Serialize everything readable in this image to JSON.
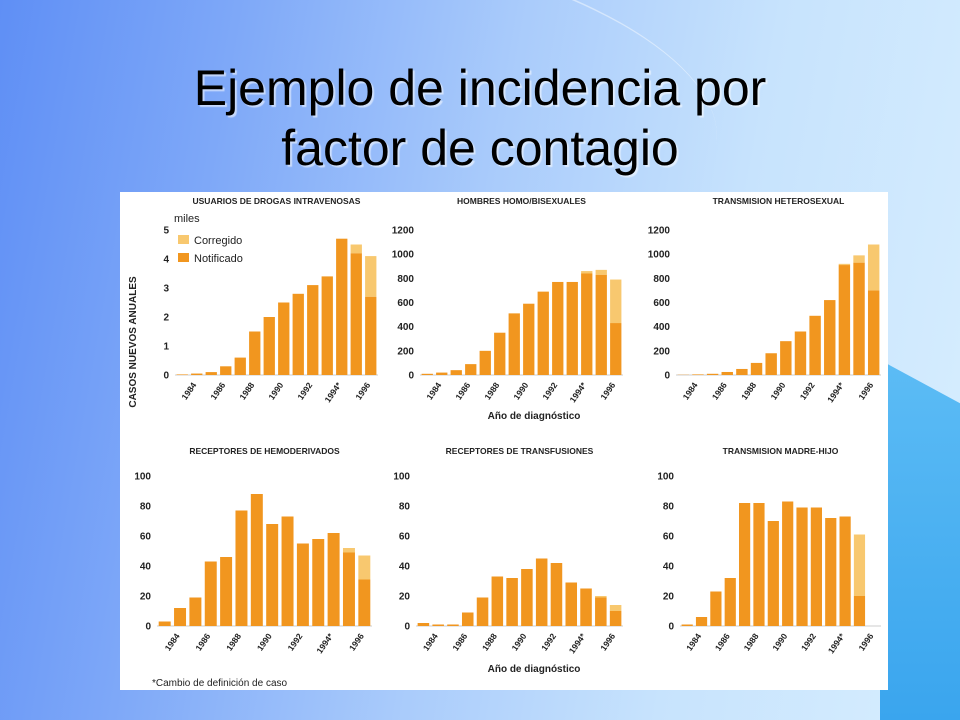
{
  "slide": {
    "title_line1": "Ejemplo de incidencia por",
    "title_line2": "factor de contagio"
  },
  "figure": {
    "y_axis_label": "CASOS NUEVOS ANUALES",
    "x_axis_label": "Año de diagnóstico",
    "footnote": "*Cambio de definición de caso",
    "legend": {
      "corrected": "Corregido",
      "reported": "Notificado"
    },
    "units": "miles",
    "colors": {
      "reported": "#f1961f",
      "corrected": "#f8c86f"
    }
  },
  "chart_data": [
    {
      "type": "bar",
      "title": "USUARIOS DE DROGAS INTRAVENOSAS",
      "ylim": [
        0,
        5
      ],
      "yticks": [
        0,
        1,
        2,
        3,
        4,
        5
      ],
      "categories": [
        "1983",
        "1984",
        "1985",
        "1986",
        "1987",
        "1988",
        "1989",
        "1990",
        "1991",
        "1992",
        "1993",
        "1994*",
        "1995",
        "1996"
      ],
      "xtick_labels": [
        "1984",
        "1986",
        "1988",
        "1990",
        "1992",
        "1994*",
        "1996"
      ],
      "series": [
        {
          "name": "Notificado",
          "values": [
            0.02,
            0.05,
            0.1,
            0.3,
            0.6,
            1.5,
            2.0,
            2.5,
            2.8,
            3.1,
            3.4,
            4.7,
            4.2,
            2.7
          ]
        },
        {
          "name": "Corregido",
          "values": [
            0,
            0,
            0,
            0,
            0,
            0,
            0,
            0,
            0,
            0,
            0,
            0,
            0.3,
            1.4
          ]
        }
      ]
    },
    {
      "type": "bar",
      "title": "HOMBRES HOMO/BISEXUALES",
      "ylim": [
        0,
        1200
      ],
      "yticks": [
        0,
        200,
        400,
        600,
        800,
        1000,
        1200
      ],
      "categories": [
        "1983",
        "1984",
        "1985",
        "1986",
        "1987",
        "1988",
        "1989",
        "1990",
        "1991",
        "1992",
        "1993",
        "1994*",
        "1995",
        "1996"
      ],
      "xtick_labels": [
        "1984",
        "1986",
        "1988",
        "1990",
        "1992",
        "1994*",
        "1996"
      ],
      "series": [
        {
          "name": "Notificado",
          "values": [
            10,
            20,
            40,
            90,
            200,
            350,
            510,
            590,
            690,
            770,
            770,
            840,
            830,
            430
          ]
        },
        {
          "name": "Corregido",
          "values": [
            0,
            0,
            0,
            0,
            0,
            0,
            0,
            0,
            0,
            0,
            0,
            20,
            40,
            360
          ]
        }
      ]
    },
    {
      "type": "bar",
      "title": "TRANSMISION HETEROSEXUAL",
      "ylim": [
        0,
        1200
      ],
      "yticks": [
        0,
        200,
        400,
        600,
        800,
        1000,
        1200
      ],
      "categories": [
        "1983",
        "1984",
        "1985",
        "1986",
        "1987",
        "1988",
        "1989",
        "1990",
        "1991",
        "1992",
        "1993",
        "1994*",
        "1995",
        "1996"
      ],
      "xtick_labels": [
        "1984",
        "1986",
        "1988",
        "1990",
        "1992",
        "1994*",
        "1996"
      ],
      "series": [
        {
          "name": "Notificado",
          "values": [
            2,
            5,
            10,
            25,
            50,
            100,
            180,
            280,
            360,
            490,
            620,
            910,
            930,
            700
          ]
        },
        {
          "name": "Corregido",
          "values": [
            0,
            0,
            0,
            0,
            0,
            0,
            0,
            0,
            0,
            0,
            0,
            10,
            60,
            380
          ]
        }
      ]
    },
    {
      "type": "bar",
      "title": "RECEPTORES DE HEMODERIVADOS",
      "ylim": [
        0,
        100
      ],
      "yticks": [
        0,
        20,
        40,
        60,
        80,
        100
      ],
      "categories": [
        "1983",
        "1984",
        "1985",
        "1986",
        "1987",
        "1988",
        "1989",
        "1990",
        "1991",
        "1992",
        "1993",
        "1994*",
        "1995",
        "1996"
      ],
      "xtick_labels": [
        "1984",
        "1986",
        "1988",
        "1990",
        "1992",
        "1994*",
        "1996"
      ],
      "series": [
        {
          "name": "Notificado",
          "values": [
            3,
            12,
            19,
            43,
            46,
            77,
            88,
            68,
            73,
            55,
            58,
            62,
            49,
            31
          ]
        },
        {
          "name": "Corregido",
          "values": [
            0,
            0,
            0,
            0,
            0,
            0,
            0,
            0,
            0,
            0,
            0,
            0,
            3,
            16
          ]
        }
      ]
    },
    {
      "type": "bar",
      "title": "RECEPTORES DE TRANSFUSIONES",
      "ylim": [
        0,
        100
      ],
      "yticks": [
        0,
        20,
        40,
        60,
        80,
        100
      ],
      "categories": [
        "1983",
        "1984",
        "1985",
        "1986",
        "1987",
        "1988",
        "1989",
        "1990",
        "1991",
        "1992",
        "1993",
        "1994*",
        "1995",
        "1996"
      ],
      "xtick_labels": [
        "1984",
        "1986",
        "1988",
        "1990",
        "1992",
        "1994*",
        "1996"
      ],
      "series": [
        {
          "name": "Notificado",
          "values": [
            2,
            1,
            1,
            9,
            19,
            33,
            32,
            38,
            45,
            42,
            29,
            25,
            19,
            10
          ]
        },
        {
          "name": "Corregido",
          "values": [
            0,
            0,
            0,
            0,
            0,
            0,
            0,
            0,
            0,
            0,
            0,
            0,
            1,
            4
          ]
        }
      ]
    },
    {
      "type": "bar",
      "title": "TRANSMISION MADRE-HIJO",
      "ylim": [
        0,
        100
      ],
      "yticks": [
        0,
        20,
        40,
        60,
        80,
        100
      ],
      "categories": [
        "1983",
        "1984",
        "1985",
        "1986",
        "1987",
        "1988",
        "1989",
        "1990",
        "1991",
        "1992",
        "1993",
        "1994*",
        "1995",
        "1996"
      ],
      "xtick_labels": [
        "1984",
        "1986",
        "1988",
        "1990",
        "1992",
        "1994*",
        "1996"
      ],
      "series": [
        {
          "name": "Notificado",
          "values": [
            1,
            6,
            23,
            32,
            82,
            82,
            70,
            83,
            79,
            79,
            72,
            73,
            20,
            0
          ]
        },
        {
          "name": "Corregido",
          "values": [
            0,
            0,
            0,
            0,
            0,
            0,
            0,
            0,
            0,
            0,
            0,
            0,
            41,
            0
          ]
        }
      ]
    }
  ]
}
